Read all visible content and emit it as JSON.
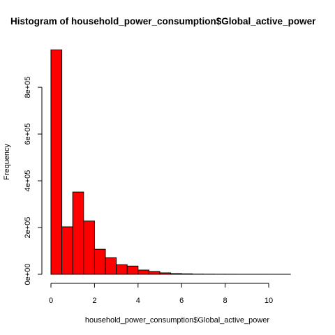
{
  "chart_data": {
    "type": "bar",
    "title": "Histogram of household_power_consumption$Global_active_power",
    "xlabel": "household_power_consumption$Global_active_power",
    "ylabel": "Frequency",
    "bin_width": 0.5,
    "bins": [
      {
        "start": 0.0,
        "end": 0.5,
        "count": 960000
      },
      {
        "start": 0.5,
        "end": 1.0,
        "count": 203000
      },
      {
        "start": 1.0,
        "end": 1.5,
        "count": 352000
      },
      {
        "start": 1.5,
        "end": 2.0,
        "count": 228000
      },
      {
        "start": 2.0,
        "end": 2.5,
        "count": 107000
      },
      {
        "start": 2.5,
        "end": 3.0,
        "count": 71000
      },
      {
        "start": 3.0,
        "end": 3.5,
        "count": 41000
      },
      {
        "start": 3.5,
        "end": 4.0,
        "count": 35000
      },
      {
        "start": 4.0,
        "end": 4.5,
        "count": 18000
      },
      {
        "start": 4.5,
        "end": 5.0,
        "count": 12000
      },
      {
        "start": 5.0,
        "end": 5.5,
        "count": 6000
      },
      {
        "start": 5.5,
        "end": 6.0,
        "count": 3000
      },
      {
        "start": 6.0,
        "end": 6.5,
        "count": 2000
      },
      {
        "start": 6.5,
        "end": 7.0,
        "count": 800
      },
      {
        "start": 7.0,
        "end": 7.5,
        "count": 500
      },
      {
        "start": 7.5,
        "end": 8.0,
        "count": 300
      },
      {
        "start": 8.0,
        "end": 8.5,
        "count": 200
      },
      {
        "start": 8.5,
        "end": 9.0,
        "count": 100
      },
      {
        "start": 9.0,
        "end": 9.5,
        "count": 80
      },
      {
        "start": 9.5,
        "end": 10.0,
        "count": 50
      },
      {
        "start": 10.0,
        "end": 10.5,
        "count": 30
      },
      {
        "start": 10.5,
        "end": 11.0,
        "count": 20
      },
      {
        "start": 11.0,
        "end": 11.5,
        "count": 10
      }
    ],
    "x_ticks": [
      0,
      2,
      4,
      6,
      8,
      10
    ],
    "x_tick_labels": [
      "0",
      "2",
      "4",
      "6",
      "8",
      "10"
    ],
    "y_ticks": [
      0,
      200000,
      400000,
      600000,
      800000
    ],
    "y_tick_labels": [
      "0e+00",
      "2e+05",
      "4e+05",
      "6e+05",
      "8e+05"
    ],
    "xlim": [
      0,
      11.5
    ],
    "ylim": [
      0,
      960000
    ],
    "grid": false,
    "legend": false,
    "bar_color": "#ff0000",
    "bar_border_color": "#000000"
  }
}
